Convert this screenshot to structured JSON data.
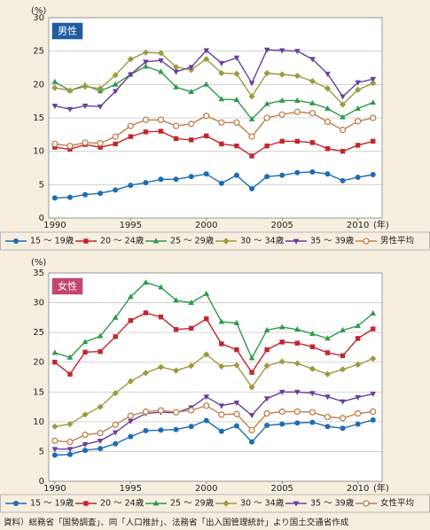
{
  "chart_data": [
    {
      "type": "line",
      "label": "男性",
      "label_color": "#1f5d9e",
      "y_unit": "(%)",
      "x_unit": "(年)",
      "x": [
        1990,
        1991,
        1992,
        1993,
        1994,
        1995,
        1996,
        1997,
        1998,
        1999,
        2000,
        2001,
        2002,
        2003,
        2004,
        2005,
        2006,
        2007,
        2008,
        2009,
        2010,
        2011
      ],
      "xlim": [
        1989.6,
        2011.6
      ],
      "xticks": [
        1990,
        1995,
        2000,
        2005,
        2010
      ],
      "ylim": [
        0,
        30
      ],
      "yticks": [
        0,
        5,
        10,
        15,
        20,
        25,
        30
      ],
      "grid": true,
      "series": [
        {
          "name": "15 ～ 19歳",
          "color": "#1b6db3",
          "marker": "circle",
          "values": [
            3.0,
            3.1,
            3.5,
            3.7,
            4.2,
            4.9,
            5.3,
            5.8,
            5.8,
            6.2,
            6.6,
            5.2,
            6.4,
            4.4,
            6.2,
            6.4,
            6.8,
            6.9,
            6.6,
            5.6,
            6.1,
            6.5
          ]
        },
        {
          "name": "20 ～ 24歳",
          "color": "#c1272d",
          "marker": "square",
          "values": [
            10.6,
            10.3,
            11.0,
            10.6,
            11.1,
            12.2,
            12.9,
            13.0,
            11.9,
            11.7,
            12.3,
            11.1,
            10.8,
            9.3,
            10.8,
            11.5,
            11.5,
            11.3,
            10.4,
            10.0,
            10.9,
            11.5
          ]
        },
        {
          "name": "25 ～ 29歳",
          "color": "#2e9a4a",
          "marker": "triangle",
          "values": [
            20.4,
            19.1,
            19.9,
            19.0,
            20.0,
            21.5,
            22.7,
            21.9,
            19.6,
            18.9,
            20.0,
            17.8,
            17.7,
            14.8,
            17.1,
            17.6,
            17.6,
            17.2,
            16.4,
            15.1,
            16.4,
            17.3
          ]
        },
        {
          "name": "30 ～ 34歳",
          "color": "#9f9a3e",
          "marker": "diamond",
          "values": [
            19.5,
            19.1,
            19.7,
            19.4,
            21.4,
            23.8,
            24.8,
            24.7,
            22.6,
            22.2,
            23.8,
            21.7,
            21.6,
            18.2,
            21.7,
            21.5,
            21.3,
            20.5,
            19.4,
            17.0,
            19.2,
            20.2
          ]
        },
        {
          "name": "35 ～ 39歳",
          "color": "#6b3e9b",
          "marker": "triangle-down",
          "values": [
            16.8,
            16.3,
            16.8,
            16.7,
            19.0,
            21.5,
            23.4,
            23.6,
            21.9,
            22.6,
            25.1,
            23.2,
            24.0,
            20.2,
            25.2,
            25.1,
            25.0,
            23.8,
            21.6,
            18.2,
            20.3,
            20.8
          ]
        },
        {
          "name": "男性平均",
          "color": "#c0804a",
          "marker": "hollow-circle",
          "values": [
            11.1,
            10.8,
            11.3,
            11.2,
            12.2,
            13.8,
            14.7,
            14.7,
            13.8,
            14.1,
            15.3,
            14.3,
            14.3,
            12.2,
            15.0,
            15.5,
            15.9,
            15.7,
            14.4,
            13.2,
            14.5,
            15.0
          ]
        }
      ]
    },
    {
      "type": "line",
      "label": "女性",
      "label_color": "#c2466e",
      "y_unit": "(%)",
      "x_unit": "(年)",
      "x": [
        1990,
        1991,
        1992,
        1993,
        1994,
        1995,
        1996,
        1997,
        1998,
        1999,
        2000,
        2001,
        2002,
        2003,
        2004,
        2005,
        2006,
        2007,
        2008,
        2009,
        2010,
        2011
      ],
      "xlim": [
        1989.6,
        2011.6
      ],
      "xticks": [
        1990,
        1995,
        2000,
        2005,
        2010
      ],
      "ylim": [
        0,
        35
      ],
      "yticks": [
        0,
        5,
        10,
        15,
        20,
        25,
        30,
        35
      ],
      "grid": true,
      "series": [
        {
          "name": "15 ～ 19歳",
          "color": "#1b6db3",
          "marker": "circle",
          "values": [
            4.4,
            4.5,
            5.2,
            5.5,
            6.3,
            7.5,
            8.5,
            8.6,
            8.7,
            9.2,
            10.2,
            8.4,
            9.3,
            6.6,
            9.4,
            9.6,
            9.8,
            9.9,
            9.2,
            8.9,
            9.6,
            10.3
          ]
        },
        {
          "name": "20 ～ 24歳",
          "color": "#c1272d",
          "marker": "square",
          "values": [
            20.0,
            18.0,
            21.7,
            21.8,
            24.3,
            27.0,
            28.3,
            27.6,
            25.5,
            25.7,
            27.3,
            23.1,
            22.1,
            18.3,
            22.1,
            23.4,
            23.2,
            22.6,
            21.6,
            21.1,
            24.0,
            25.6
          ]
        },
        {
          "name": "25 ～ 29歳",
          "color": "#2e9a4a",
          "marker": "triangle",
          "values": [
            21.6,
            20.8,
            23.4,
            24.4,
            27.5,
            31.0,
            33.4,
            32.6,
            30.4,
            30.0,
            31.5,
            26.8,
            26.6,
            20.7,
            25.4,
            25.9,
            25.5,
            24.8,
            24.0,
            25.4,
            26.1,
            28.2
          ]
        },
        {
          "name": "30 ～ 34歳",
          "color": "#9f9a3e",
          "marker": "diamond",
          "values": [
            9.2,
            9.6,
            11.2,
            12.5,
            14.8,
            16.8,
            18.2,
            19.2,
            18.6,
            19.4,
            21.3,
            19.3,
            19.5,
            15.8,
            19.4,
            20.1,
            19.8,
            18.9,
            18.0,
            18.8,
            19.6,
            20.6
          ]
        },
        {
          "name": "35 ～ 39歳",
          "color": "#6b3e9b",
          "marker": "triangle-down",
          "values": [
            5.4,
            5.4,
            6.2,
            6.8,
            8.2,
            10.1,
            11.4,
            11.6,
            11.5,
            12.4,
            14.2,
            12.7,
            13.2,
            11.1,
            13.9,
            15.0,
            15.0,
            14.8,
            14.2,
            13.4,
            14.1,
            14.7
          ]
        },
        {
          "name": "女性平均",
          "color": "#c0804a",
          "marker": "hollow-circle",
          "values": [
            6.8,
            6.6,
            7.8,
            8.1,
            9.5,
            11.0,
            11.7,
            11.9,
            11.6,
            11.9,
            12.7,
            11.2,
            11.3,
            8.6,
            11.4,
            11.7,
            11.7,
            11.6,
            10.8,
            10.6,
            11.4,
            11.7
          ]
        }
      ]
    }
  ],
  "source": "資料）総務省「国勢調査」、同「人口推計」、法務省「出入国管理統計」より国土交通省作成"
}
